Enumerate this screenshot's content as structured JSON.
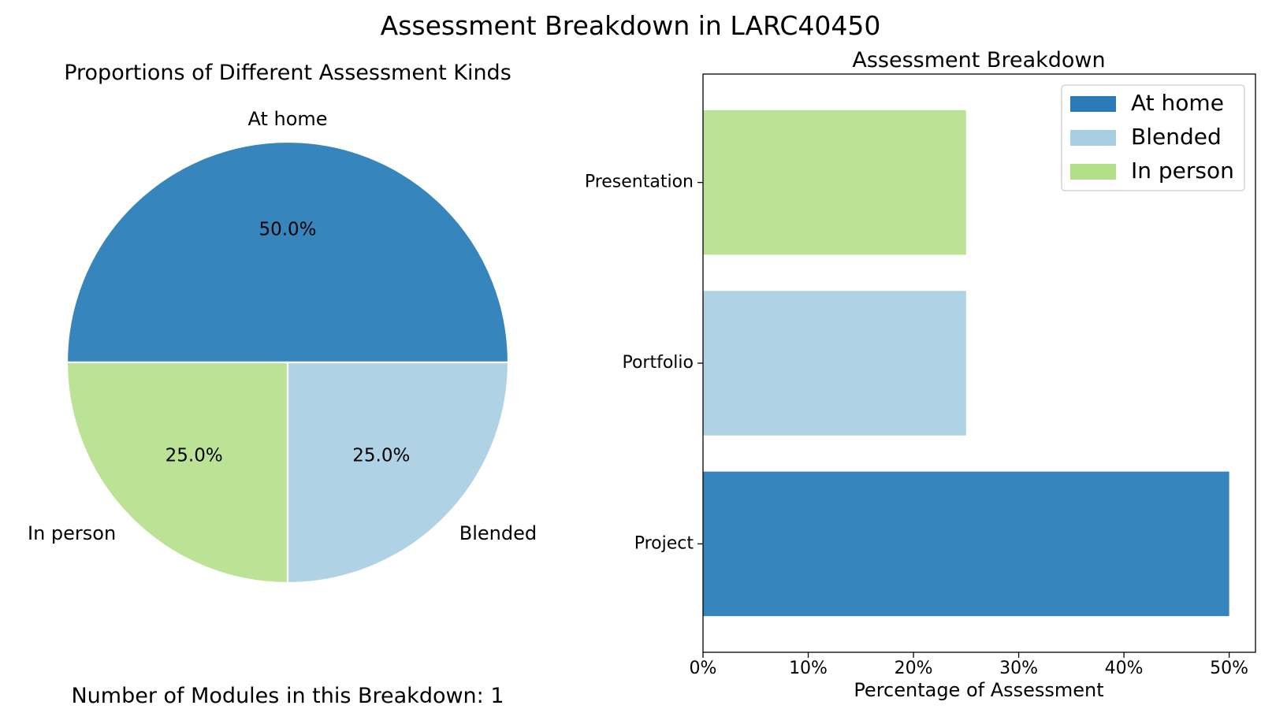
{
  "figure": {
    "suptitle": "Assessment Breakdown in LARC40450",
    "footer": "Number of Modules in this Breakdown: 1"
  },
  "colors": {
    "at_home": "#3685bc",
    "blended": "#b0d2e5",
    "in_person": "#bce395",
    "legend_at_home": "#2a7ab8"
  },
  "chart_data": [
    {
      "type": "pie",
      "title": "Proportions of Different Assessment Kinds",
      "slices": [
        {
          "label": "At home",
          "value": 50.0,
          "pct_label": "50.0%",
          "color": "#3685bc"
        },
        {
          "label": "In person",
          "value": 25.0,
          "pct_label": "25.0%",
          "color": "#bce395"
        },
        {
          "label": "Blended",
          "value": 25.0,
          "pct_label": "25.0%",
          "color": "#b0d2e5"
        }
      ]
    },
    {
      "type": "bar",
      "orientation": "horizontal",
      "title": "Assessment Breakdown",
      "xlabel": "Percentage of Assessment",
      "ylabel": "",
      "xlim": [
        0,
        52.5
      ],
      "xticks": [
        0,
        10,
        20,
        30,
        40,
        50
      ],
      "xtick_labels": [
        "0%",
        "10%",
        "20%",
        "30%",
        "40%",
        "50%"
      ],
      "categories": [
        "Project",
        "Portfolio",
        "Presentation"
      ],
      "bars": [
        {
          "category": "Project",
          "value": 50,
          "kind": "At home",
          "color": "#3685bc"
        },
        {
          "category": "Portfolio",
          "value": 25,
          "kind": "Blended",
          "color": "#b0d2e5"
        },
        {
          "category": "Presentation",
          "value": 25,
          "kind": "In person",
          "color": "#bce395"
        }
      ],
      "legend": {
        "position": "upper-right",
        "entries": [
          {
            "label": "At home",
            "color": "#2a7ab8"
          },
          {
            "label": "Blended",
            "color": "#a8cee2"
          },
          {
            "label": "In person",
            "color": "#b2df8a"
          }
        ]
      }
    }
  ]
}
